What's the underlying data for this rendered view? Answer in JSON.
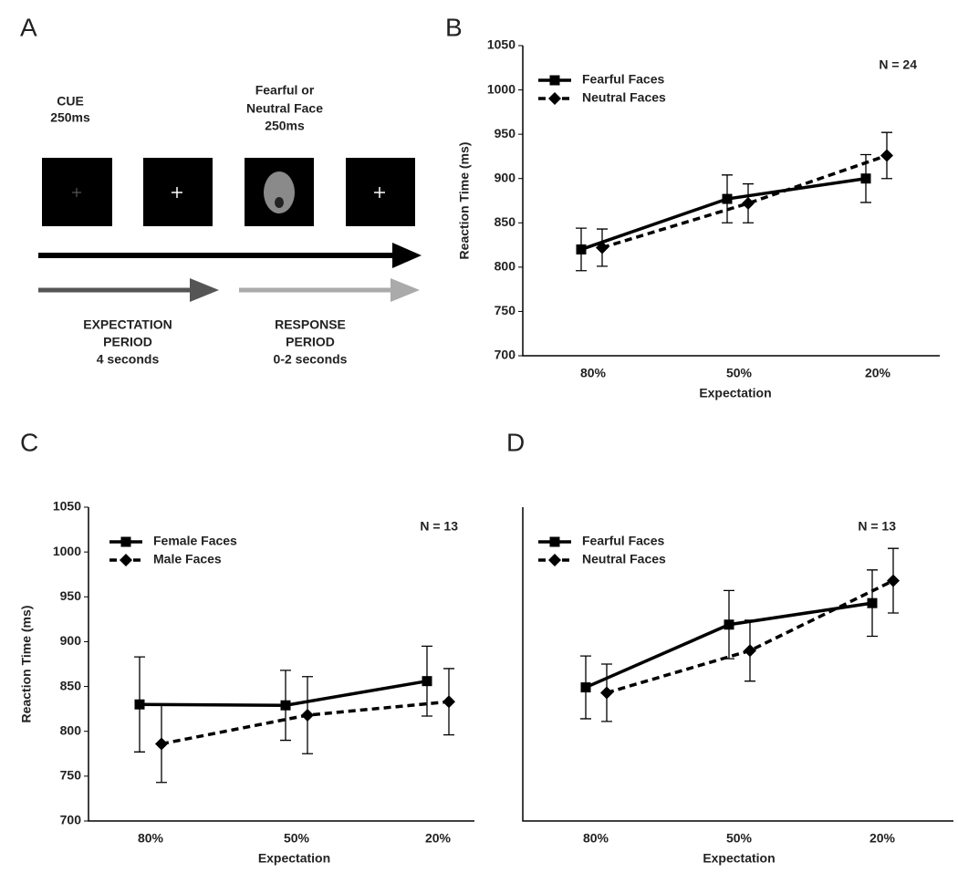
{
  "panel_a": {
    "label": "A",
    "cue": [
      "CUE",
      "250ms"
    ],
    "face": [
      "Fearful or",
      "Neutral Face",
      "250ms"
    ],
    "expectation": [
      "EXPECTATION",
      "PERIOD",
      "4 seconds"
    ],
    "response": [
      "RESPONSE",
      "PERIOD",
      "0-2 seconds"
    ]
  },
  "chart_data": [
    {
      "type": "line",
      "panel": "B",
      "annotation": "N = 24",
      "xlabel": "Expectation",
      "ylabel": "Reaction Time (ms)",
      "categories": [
        "80%",
        "50%",
        "20%"
      ],
      "series": [
        {
          "name": "Fearful Faces",
          "color": "#000000",
          "marker": "square",
          "dashed": false,
          "values": [
            820,
            877,
            900
          ],
          "errors": [
            24,
            27,
            27
          ]
        },
        {
          "name": "Neutral Faces",
          "color": "#000000",
          "marker": "diamond",
          "dashed": true,
          "values": [
            822,
            872,
            926
          ],
          "errors": [
            21,
            22,
            26
          ]
        }
      ],
      "ylim": [
        700,
        1050
      ],
      "yticks": [
        700,
        750,
        800,
        850,
        900,
        950,
        1000,
        1050
      ]
    },
    {
      "type": "line",
      "panel": "C",
      "annotation": "N = 13",
      "xlabel": "Expectation",
      "ylabel": "Reaction Time (ms)",
      "categories": [
        "80%",
        "50%",
        "20%"
      ],
      "series": [
        {
          "name": "Female Faces",
          "color": "#000000",
          "marker": "square",
          "dashed": false,
          "values": [
            830,
            829,
            856
          ],
          "errors": [
            53,
            39,
            39
          ]
        },
        {
          "name": "Male Faces",
          "color": "#000000",
          "marker": "diamond",
          "dashed": true,
          "values": [
            786,
            818,
            833
          ],
          "errors": [
            43,
            43,
            37
          ]
        }
      ],
      "ylim": [
        700,
        1050
      ],
      "yticks": [
        700,
        750,
        800,
        850,
        900,
        950,
        1000,
        1050
      ]
    },
    {
      "type": "line",
      "panel": "D",
      "annotation": "N = 13",
      "xlabel": "Expectation",
      "categories": [
        "80%",
        "50%",
        "20%"
      ],
      "series": [
        {
          "name": "Fearful Faces",
          "color": "#000000",
          "marker": "square",
          "dashed": false,
          "values": [
            849,
            919,
            943
          ],
          "errors": [
            35,
            38,
            37
          ]
        },
        {
          "name": "Neutral Faces",
          "color": "#000000",
          "marker": "diamond",
          "dashed": true,
          "values": [
            843,
            890,
            968
          ],
          "errors": [
            32,
            34,
            36
          ]
        }
      ],
      "ylim": [
        700,
        1050
      ]
    }
  ]
}
